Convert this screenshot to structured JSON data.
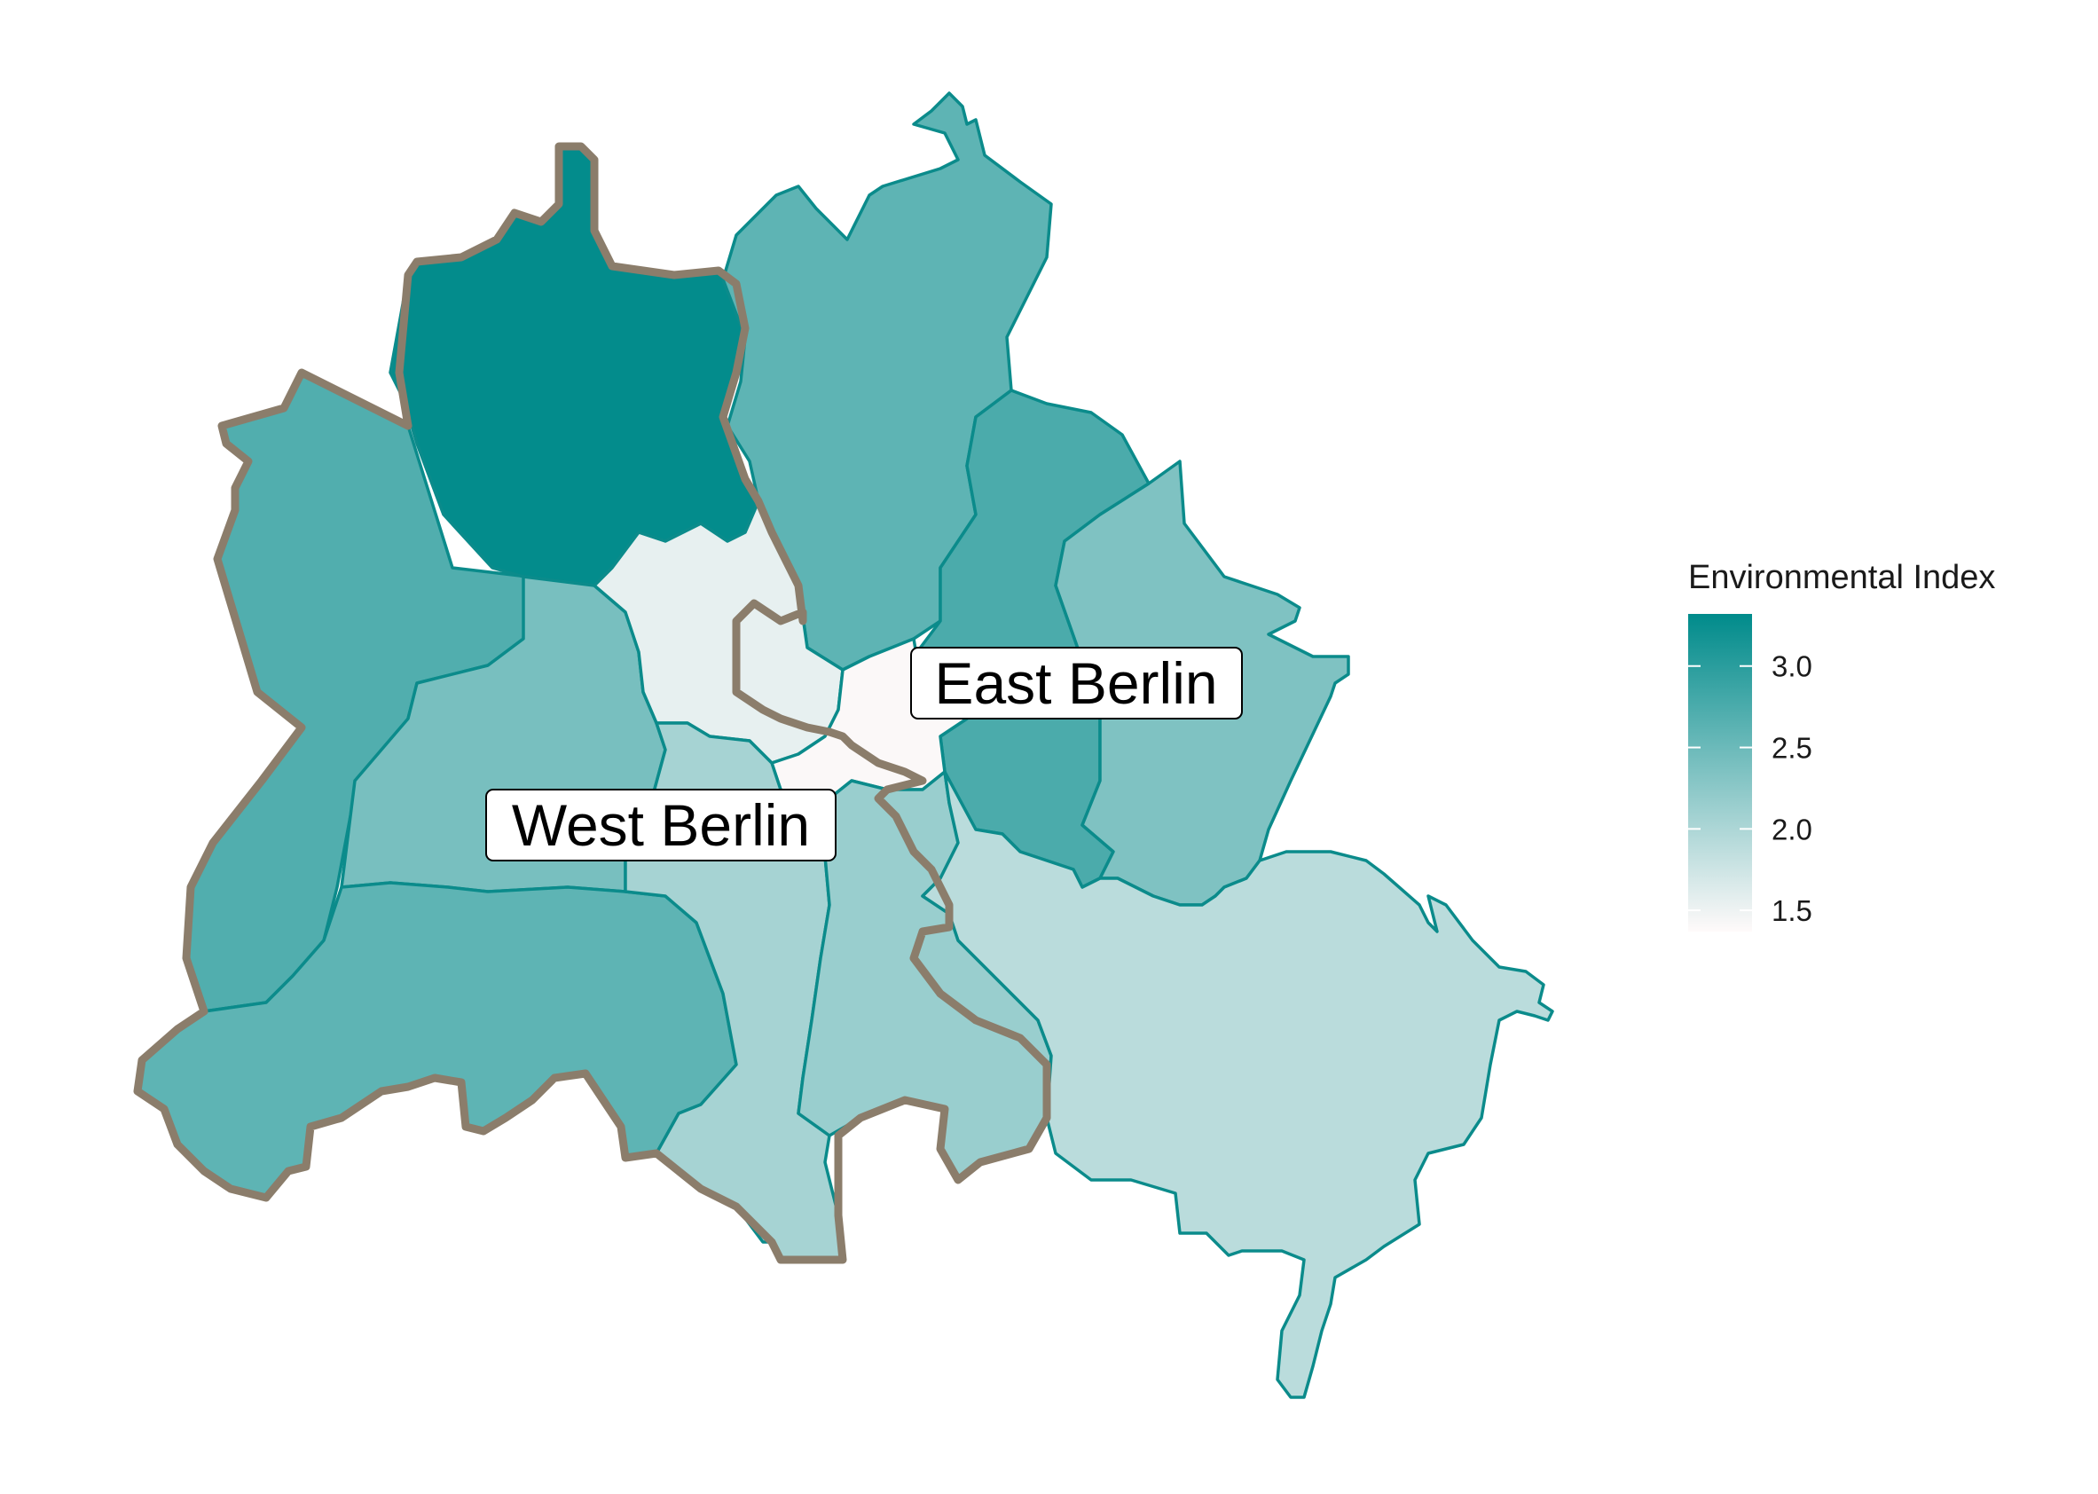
{
  "map": {
    "regions": [
      {
        "id": "spandau",
        "value": 2.7
      },
      {
        "id": "reinickendorf",
        "value": 3.3
      },
      {
        "id": "pankow",
        "value": 2.6
      },
      {
        "id": "lichtenberg",
        "value": 2.75
      },
      {
        "id": "marzahn-hellersdorf",
        "value": 2.35
      },
      {
        "id": "charlottenburg-wilmersdorf",
        "value": 2.4
      },
      {
        "id": "mitte",
        "value": 1.55
      },
      {
        "id": "friedrichshain-kreuzberg",
        "value": 1.4
      },
      {
        "id": "steglitz-zehlendorf",
        "value": 2.6
      },
      {
        "id": "tempelhof-schoeneberg",
        "value": 2.05
      },
      {
        "id": "neukoelln",
        "value": 2.15
      },
      {
        "id": "treptow-koepenick",
        "value": 1.9
      }
    ],
    "labels": {
      "east": "East Berlin",
      "west": "West Berlin"
    },
    "colors": {
      "low": "#fffafa",
      "high": "#008b8b",
      "district_border": "#0b8b8b",
      "wall_border": "#8b7d6b"
    }
  },
  "legend": {
    "title": "Environmental Index",
    "min": 1.37,
    "max": 3.32,
    "ticks": [
      {
        "value": 3.0,
        "label": "3.0"
      },
      {
        "value": 2.5,
        "label": "2.5"
      },
      {
        "value": 2.0,
        "label": "2.0"
      },
      {
        "value": 1.5,
        "label": "1.5"
      }
    ]
  }
}
